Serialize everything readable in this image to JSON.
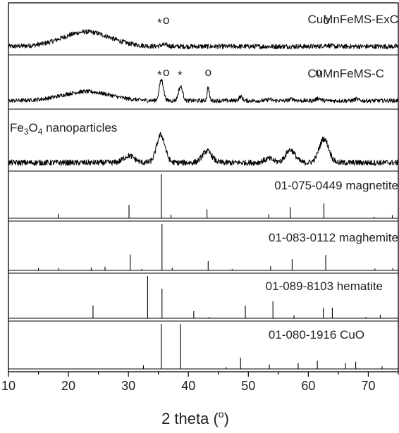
{
  "chart_data": {
    "type": "line",
    "title": "",
    "xlabel_text": "2 theta (",
    "xlabel_sup": "o",
    "xlabel_close": ")",
    "ylabel": "",
    "xlim": [
      10,
      75
    ],
    "x_ticks": [
      10,
      20,
      30,
      40,
      50,
      60,
      70
    ],
    "grid": false,
    "panels": [
      {
        "label": "CuMnFeMS-ExC",
        "kind": "measured",
        "humps": [
          [
            23,
            0.45,
            4
          ],
          [
            36,
            0.05,
            0.6
          ],
          [
            63,
            0.04,
            0.6
          ]
        ],
        "noise": 0.075,
        "markers": [
          {
            "symbol": "*",
            "x": 35.2
          },
          {
            "symbol": "o",
            "x": 36.3
          },
          {
            "symbol": "o",
            "x": 63
          }
        ]
      },
      {
        "label": "CuMnFeMS-C",
        "kind": "measured",
        "humps": [
          [
            23,
            0.27,
            4
          ],
          [
            35.5,
            0.62,
            0.35
          ],
          [
            38.7,
            0.42,
            0.35
          ],
          [
            43.3,
            0.4,
            0.18
          ],
          [
            48.7,
            0.12,
            0.3
          ],
          [
            53.5,
            0.05,
            0.3
          ],
          [
            57.3,
            0.05,
            0.4
          ],
          [
            61.7,
            0.07,
            0.4
          ],
          [
            68,
            0.05,
            0.3
          ]
        ],
        "noise": 0.06,
        "markers": [
          {
            "symbol": "*",
            "x": 35.2
          },
          {
            "symbol": "o",
            "x": 36.3
          },
          {
            "symbol": "*",
            "x": 38.6
          },
          {
            "symbol": "o",
            "x": 43.3
          },
          {
            "symbol": "o",
            "x": 61.7
          }
        ]
      },
      {
        "label": "Fe",
        "label_sub1": "3",
        "label_mid": "O",
        "label_sub2": "4",
        "label_tail": " nanoparticles",
        "kind": "measured",
        "humps": [
          [
            30.1,
            0.18,
            0.9
          ],
          [
            35.4,
            0.72,
            0.7
          ],
          [
            43.1,
            0.3,
            0.8
          ],
          [
            53.4,
            0.1,
            0.8
          ],
          [
            57,
            0.33,
            0.8
          ],
          [
            62.6,
            0.62,
            0.8
          ]
        ],
        "noise": 0.075,
        "markers": []
      },
      {
        "label": "01-075-0449 magnetite",
        "kind": "reference",
        "peaks": [
          [
            18.3,
            0.1
          ],
          [
            30.1,
            0.3
          ],
          [
            35.5,
            1.0
          ],
          [
            37.1,
            0.08
          ],
          [
            43.1,
            0.2
          ],
          [
            53.4,
            0.09
          ],
          [
            57,
            0.25
          ],
          [
            62.6,
            0.34
          ],
          [
            71,
            0.03
          ],
          [
            74,
            0.07
          ]
        ]
      },
      {
        "label": "01-083-0112 maghemite",
        "kind": "reference",
        "peaks": [
          [
            15,
            0.05
          ],
          [
            18.4,
            0.05
          ],
          [
            23.8,
            0.06
          ],
          [
            26.1,
            0.08
          ],
          [
            30.3,
            0.34
          ],
          [
            32.2,
            0.03
          ],
          [
            35.6,
            1.0
          ],
          [
            37.3,
            0.05
          ],
          [
            43.3,
            0.2
          ],
          [
            47.3,
            0.03
          ],
          [
            53.7,
            0.09
          ],
          [
            57.3,
            0.24
          ],
          [
            62.9,
            0.33
          ],
          [
            71.1,
            0.04
          ],
          [
            74.1,
            0.05
          ]
        ]
      },
      {
        "label": "01-089-8103 hematite",
        "kind": "reference",
        "peaks": [
          [
            24.1,
            0.3
          ],
          [
            33.2,
            1.0
          ],
          [
            35.6,
            0.7
          ],
          [
            40.9,
            0.17
          ],
          [
            43.5,
            0.03
          ],
          [
            49.5,
            0.3
          ],
          [
            54.1,
            0.4
          ],
          [
            57.6,
            0.07
          ],
          [
            62.5,
            0.25
          ],
          [
            64,
            0.25
          ],
          [
            69.6,
            0.03
          ],
          [
            72,
            0.08
          ]
        ]
      },
      {
        "label": "01-080-1916 CuO",
        "kind": "reference",
        "peaks": [
          [
            32.5,
            0.08
          ],
          [
            35.5,
            1.0
          ],
          [
            38.7,
            1.0
          ],
          [
            46.3,
            0.04
          ],
          [
            48.7,
            0.25
          ],
          [
            53.5,
            0.1
          ],
          [
            58.3,
            0.13
          ],
          [
            61.5,
            0.18
          ],
          [
            66.2,
            0.13
          ],
          [
            67.9,
            0.16
          ],
          [
            72.3,
            0.06
          ]
        ]
      }
    ]
  }
}
